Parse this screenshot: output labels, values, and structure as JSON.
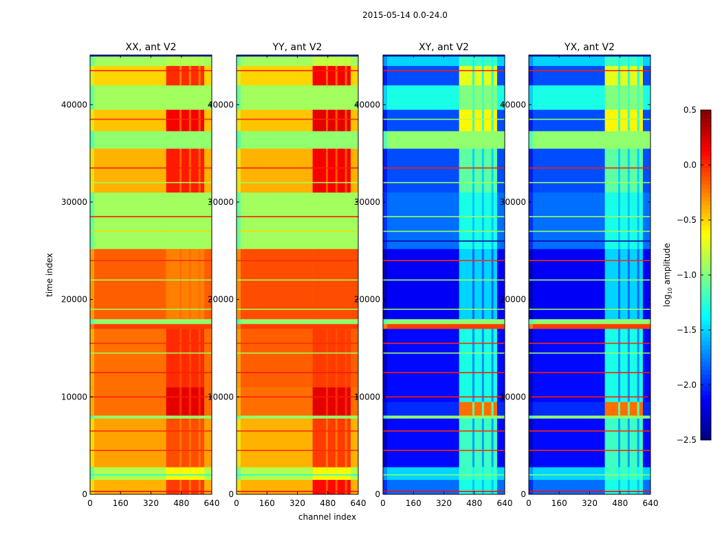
{
  "chart_data": {
    "type": "heatmap",
    "title": "2015-05-14 0.0-24.0",
    "xlabel": "channel index",
    "ylabel": "time index",
    "xlim": [
      0,
      640
    ],
    "ylim": [
      0,
      45100
    ],
    "xticks": [
      "0",
      "160",
      "320",
      "480",
      "640"
    ],
    "xtick_values": [
      0,
      160,
      320,
      480,
      640
    ],
    "yticks": [
      "0",
      "10000",
      "20000",
      "30000",
      "40000"
    ],
    "ytick_values": [
      0,
      10000,
      20000,
      30000,
      40000
    ],
    "colormap": "jet",
    "colorbar": {
      "label_prefix": "log",
      "label_sub": "10",
      "label_suffix": " amplitude",
      "vmin": -2.5,
      "vmax": 0.5,
      "ticks": [
        "0.5",
        "0.0",
        "−0.5",
        "−1.0",
        "−1.5",
        "−2.0",
        "−2.5"
      ],
      "tick_values": [
        0.5,
        0.0,
        -0.5,
        -1.0,
        -1.5,
        -2.0,
        -2.5
      ]
    },
    "rfi_channel_range": [
      400,
      600
    ],
    "panels": [
      {
        "title": "XX, ant V2",
        "bands": [
          [
            0,
            1500,
            -0.4,
            -0.05
          ],
          [
            1500,
            2800,
            -0.85,
            -0.6
          ],
          [
            2800,
            7800,
            -0.35,
            -0.1
          ],
          [
            7800,
            8100,
            -0.95,
            -0.95
          ],
          [
            8100,
            11000,
            -0.2,
            0.2
          ],
          [
            11000,
            17000,
            -0.2,
            0.0
          ],
          [
            17000,
            17500,
            -0.05,
            -0.05
          ],
          [
            17500,
            18000,
            -0.95,
            -0.95
          ],
          [
            18000,
            25200,
            -0.15,
            -0.25
          ],
          [
            25200,
            31000,
            -0.9,
            -0.9
          ],
          [
            31000,
            35500,
            -0.4,
            0.05
          ],
          [
            35500,
            37300,
            -0.95,
            -0.95
          ],
          [
            37300,
            39500,
            -0.45,
            0.15
          ],
          [
            39500,
            42000,
            -0.9,
            -0.9
          ],
          [
            42000,
            44000,
            -0.5,
            0.0
          ],
          [
            44000,
            45100,
            -0.9,
            -0.85
          ]
        ],
        "lines": [
          [
            300,
            0.1
          ],
          [
            2000,
            -1.3
          ],
          [
            4500,
            0.0
          ],
          [
            6500,
            0.0
          ],
          [
            10000,
            0.05
          ],
          [
            12500,
            0.05
          ],
          [
            14500,
            -0.9
          ],
          [
            15500,
            0.0
          ],
          [
            19000,
            -0.9
          ],
          [
            22000,
            -0.9
          ],
          [
            24000,
            0.0
          ],
          [
            27000,
            -0.5
          ],
          [
            28500,
            0.05
          ],
          [
            32000,
            -0.9
          ],
          [
            33500,
            0.05
          ],
          [
            38500,
            0.0
          ],
          [
            43500,
            0.05
          ],
          [
            45000,
            -2.3
          ]
        ]
      },
      {
        "title": "YY, ant V2",
        "bands": [
          [
            0,
            1500,
            -0.4,
            0.1
          ],
          [
            1500,
            2800,
            -0.85,
            -0.6
          ],
          [
            2800,
            7800,
            -0.4,
            -0.05
          ],
          [
            7800,
            8100,
            -0.95,
            -0.95
          ],
          [
            8100,
            11000,
            -0.2,
            0.2
          ],
          [
            11000,
            17000,
            -0.15,
            -0.05
          ],
          [
            17000,
            17500,
            -0.05,
            -0.05
          ],
          [
            17500,
            18000,
            -0.95,
            -0.95
          ],
          [
            18000,
            25200,
            -0.1,
            -0.1
          ],
          [
            25200,
            31000,
            -0.9,
            -0.9
          ],
          [
            31000,
            35500,
            -0.4,
            0.15
          ],
          [
            35500,
            37300,
            -0.95,
            -0.95
          ],
          [
            37300,
            39500,
            -0.45,
            0.2
          ],
          [
            39500,
            42000,
            -0.9,
            -0.9
          ],
          [
            42000,
            44000,
            -0.5,
            0.15
          ],
          [
            44000,
            45100,
            -0.9,
            -0.8
          ]
        ],
        "lines": [
          [
            300,
            0.1
          ],
          [
            2000,
            -1.3
          ],
          [
            4500,
            0.0
          ],
          [
            6500,
            0.0
          ],
          [
            10000,
            0.05
          ],
          [
            12500,
            0.05
          ],
          [
            14500,
            -0.9
          ],
          [
            15500,
            0.0
          ],
          [
            19000,
            -0.9
          ],
          [
            22000,
            -0.9
          ],
          [
            24000,
            0.0
          ],
          [
            27000,
            -0.5
          ],
          [
            28500,
            0.05
          ],
          [
            32000,
            -0.9
          ],
          [
            33500,
            0.05
          ],
          [
            38500,
            0.0
          ],
          [
            43500,
            0.05
          ],
          [
            45000,
            -2.3
          ]
        ]
      },
      {
        "title": "XY, ant V2",
        "bands": [
          [
            0,
            1500,
            -1.8,
            -1.3
          ],
          [
            1500,
            2800,
            -1.5,
            -1.2
          ],
          [
            2800,
            7800,
            -2.1,
            -1.2
          ],
          [
            7800,
            8100,
            -0.95,
            -0.95
          ],
          [
            8100,
            9500,
            -2.0,
            -0.2
          ],
          [
            9500,
            17000,
            -2.1,
            -1.3
          ],
          [
            17000,
            17500,
            -0.05,
            -0.05
          ],
          [
            17500,
            18000,
            -0.95,
            -0.95
          ],
          [
            18000,
            25200,
            -2.15,
            -1.5
          ],
          [
            25200,
            31000,
            -1.8,
            -1.3
          ],
          [
            31000,
            35500,
            -1.9,
            -1.1
          ],
          [
            35500,
            37300,
            -0.95,
            -0.95
          ],
          [
            37300,
            39500,
            -1.9,
            -0.6
          ],
          [
            39500,
            42000,
            -1.3,
            -1.0
          ],
          [
            42000,
            44000,
            -1.9,
            -0.7
          ],
          [
            44000,
            45100,
            -1.5,
            -1.2
          ]
        ],
        "lines": [
          [
            300,
            0.1
          ],
          [
            2000,
            -1.0
          ],
          [
            4500,
            0.0
          ],
          [
            6500,
            0.0
          ],
          [
            10000,
            0.05
          ],
          [
            12500,
            0.05
          ],
          [
            14500,
            -0.9
          ],
          [
            15500,
            0.0
          ],
          [
            19000,
            -0.9
          ],
          [
            22000,
            -0.9
          ],
          [
            24000,
            0.0
          ],
          [
            26000,
            -2.4
          ],
          [
            27000,
            -0.9
          ],
          [
            28500,
            -0.9
          ],
          [
            32000,
            -0.9
          ],
          [
            33500,
            0.05
          ],
          [
            38500,
            -0.9
          ],
          [
            43500,
            0.05
          ],
          [
            45000,
            -2.3
          ]
        ]
      },
      {
        "title": "YX, ant V2",
        "bands": [
          [
            0,
            1500,
            -1.8,
            -1.3
          ],
          [
            1500,
            2800,
            -1.5,
            -1.2
          ],
          [
            2800,
            7800,
            -2.1,
            -1.2
          ],
          [
            7800,
            8100,
            -0.95,
            -0.95
          ],
          [
            8100,
            9500,
            -2.0,
            -0.2
          ],
          [
            9500,
            17000,
            -2.1,
            -1.3
          ],
          [
            17000,
            17500,
            -0.05,
            -0.05
          ],
          [
            17500,
            18000,
            -0.95,
            -0.95
          ],
          [
            18000,
            25200,
            -2.15,
            -1.5
          ],
          [
            25200,
            31000,
            -1.8,
            -1.3
          ],
          [
            31000,
            35500,
            -1.9,
            -1.1
          ],
          [
            35500,
            37300,
            -0.95,
            -0.95
          ],
          [
            37300,
            39500,
            -1.9,
            -0.6
          ],
          [
            39500,
            42000,
            -1.3,
            -1.0
          ],
          [
            42000,
            44000,
            -1.9,
            -0.7
          ],
          [
            44000,
            45100,
            -1.5,
            -1.2
          ]
        ],
        "lines": [
          [
            300,
            0.1
          ],
          [
            2000,
            -1.0
          ],
          [
            4500,
            0.0
          ],
          [
            6500,
            0.0
          ],
          [
            10000,
            0.05
          ],
          [
            12500,
            0.05
          ],
          [
            14500,
            -0.9
          ],
          [
            15500,
            0.0
          ],
          [
            19000,
            -0.9
          ],
          [
            22000,
            -0.9
          ],
          [
            24000,
            0.0
          ],
          [
            26000,
            -2.4
          ],
          [
            27000,
            -0.9
          ],
          [
            28500,
            -0.9
          ],
          [
            32000,
            -0.9
          ],
          [
            33500,
            0.05
          ],
          [
            38500,
            -0.9
          ],
          [
            43500,
            0.05
          ],
          [
            45000,
            -2.3
          ]
        ]
      }
    ]
  }
}
